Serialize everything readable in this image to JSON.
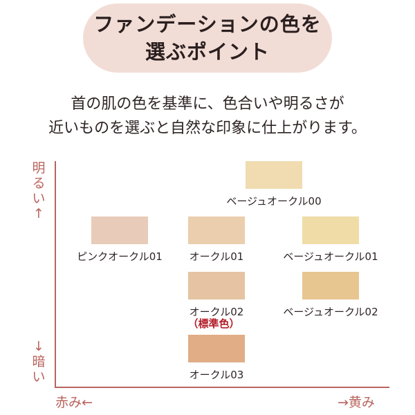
{
  "title": {
    "line1": "ファンデーションの色を",
    "line2": "選ぶポイント"
  },
  "subtitle": {
    "line1": "首の肌の色を基準に、色合いや明るさが",
    "line2": "近いものを選ぶと自然な印象に仕上がります。"
  },
  "axes": {
    "y_top": [
      "明",
      "る",
      "い",
      "↑"
    ],
    "y_bottom": [
      "↓",
      "暗",
      "い"
    ],
    "x_left": "赤み←",
    "x_right": "→黄み",
    "color": "#b8645d"
  },
  "shades": [
    {
      "name": "ベージュオークル00",
      "color": "#f0dcb0"
    },
    {
      "name": "ピンクオークル01",
      "color": "#e8cbb8"
    },
    {
      "name": "オークル01",
      "color": "#ebceae"
    },
    {
      "name": "ベージュオークル01",
      "color": "#f0dca6"
    },
    {
      "name": "オークル02",
      "color": "#e6c3a2",
      "note": "（標準色）"
    },
    {
      "name": "ベージュオークル02",
      "color": "#e8c68f"
    },
    {
      "name": "オークル03",
      "color": "#e0ad86"
    }
  ]
}
